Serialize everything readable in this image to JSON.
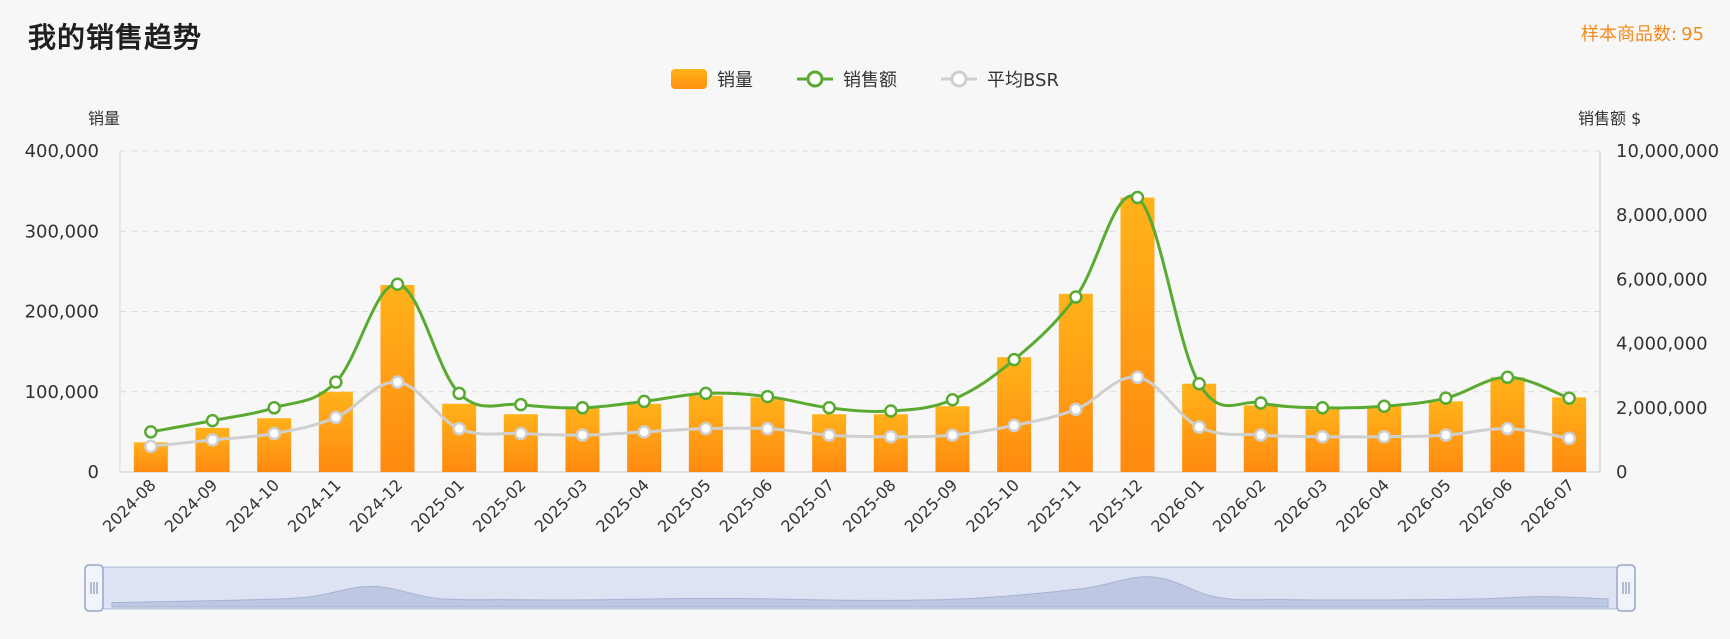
{
  "page": {
    "title": "我的销售趋势",
    "sample_label": "样本商品数:",
    "sample_count": "95"
  },
  "colors": {
    "bar_top": "#ffb21a",
    "bar_bottom": "#ff8a10",
    "sales_line": "#5aaa32",
    "bsr_line": "#cfcfcf",
    "zoom_fill": "#dde3f2",
    "zoom_border": "#aeb8d4",
    "accent": "#f28b1e"
  },
  "legend": [
    {
      "name": "销量",
      "icon": "bar-swatch-icon"
    },
    {
      "name": "销售额",
      "icon": "line-circle-icon"
    },
    {
      "name": "平均BSR",
      "icon": "line-circle-icon"
    }
  ],
  "chart_data": {
    "type": "bar",
    "categories": [
      "2024-08",
      "2024-09",
      "2024-10",
      "2024-11",
      "2024-12",
      "2025-01",
      "2025-02",
      "2025-03",
      "2025-04",
      "2025-05",
      "2025-06",
      "2025-07",
      "2025-08",
      "2025-09",
      "2025-10",
      "2025-11",
      "2025-12",
      "2026-01",
      "2026-02",
      "2026-03",
      "2026-04",
      "2026-05",
      "2026-06",
      "2026-07"
    ],
    "y_left_label": "销量",
    "y_right_label": "销售额 $",
    "y_left_ticks": [
      "0",
      "100,000",
      "200,000",
      "300,000",
      "400,000"
    ],
    "y_right_ticks": [
      "0",
      "2,000,000",
      "4,000,000",
      "6,000,000",
      "8,000,000",
      "10,000,000"
    ],
    "ylim_left": [
      0,
      400000
    ],
    "ylim_right": [
      0,
      10000000
    ],
    "grid": true,
    "legend_position": "top-center",
    "series": [
      {
        "name": "销量",
        "type": "bar",
        "axis": "left",
        "values": [
          37000,
          55000,
          67000,
          100000,
          233000,
          85000,
          72000,
          80000,
          85000,
          95000,
          93000,
          72000,
          72000,
          82000,
          143000,
          222000,
          342000,
          110000,
          83000,
          78000,
          82000,
          88000,
          118000,
          93000
        ]
      },
      {
        "name": "销售额",
        "type": "line",
        "axis": "right",
        "values": [
          1250000,
          1600000,
          2000000,
          2800000,
          5850000,
          2450000,
          2100000,
          2000000,
          2200000,
          2450000,
          2350000,
          2000000,
          1900000,
          2250000,
          3500000,
          5450000,
          8550000,
          2750000,
          2150000,
          2000000,
          2050000,
          2300000,
          2950000,
          2300000
        ]
      },
      {
        "name": "平均BSR",
        "type": "line",
        "axis": "right",
        "values": [
          800000,
          1000000,
          1200000,
          1700000,
          2800000,
          1350000,
          1200000,
          1150000,
          1250000,
          1350000,
          1350000,
          1150000,
          1100000,
          1150000,
          1450000,
          1950000,
          2950000,
          1400000,
          1150000,
          1100000,
          1100000,
          1150000,
          1350000,
          1050000
        ]
      }
    ]
  }
}
